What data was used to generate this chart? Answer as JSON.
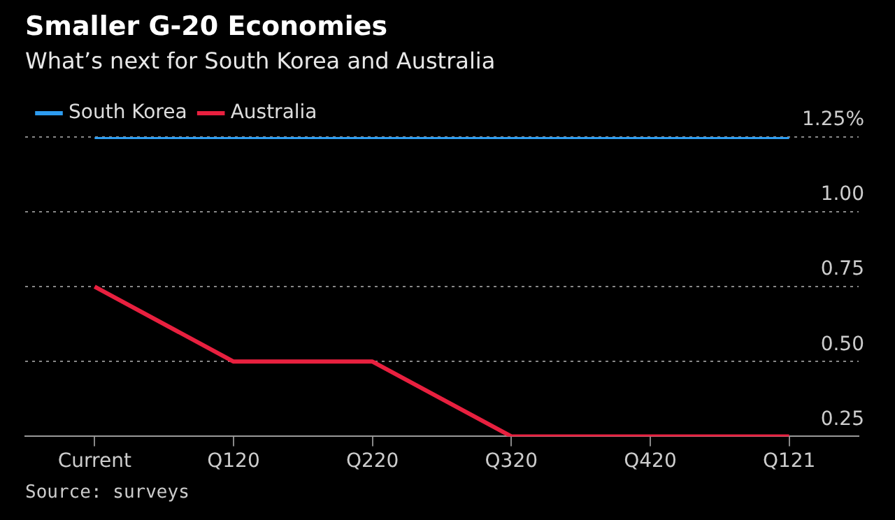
{
  "chart_data": {
    "type": "line",
    "title": "Smaller G-20 Economies",
    "subtitle": "What’s next for South Korea and Australia",
    "categories": [
      "Current",
      "Q120",
      "Q220",
      "Q320",
      "Q420",
      "Q121"
    ],
    "series": [
      {
        "name": "South Korea",
        "color": "#2d9cf0",
        "values": [
          1.25,
          1.25,
          1.25,
          1.25,
          1.25,
          1.25
        ]
      },
      {
        "name": "Australia",
        "color": "#e8203f",
        "values": [
          0.75,
          0.5,
          0.5,
          0.25,
          0.25,
          0.25
        ]
      }
    ],
    "ylim": [
      0.25,
      1.25
    ],
    "yticks": [
      0.25,
      {
        "value": 0.5,
        "label": "0.50"
      },
      0.75,
      {
        "value": 1,
        "label": "1.00"
      },
      {
        "value": 1.25,
        "label": "1.25%"
      }
    ],
    "grid": "y",
    "legend": "top left",
    "marker": "none",
    "line_style": "solid",
    "annotations": [
      "Source: surveys"
    ]
  }
}
